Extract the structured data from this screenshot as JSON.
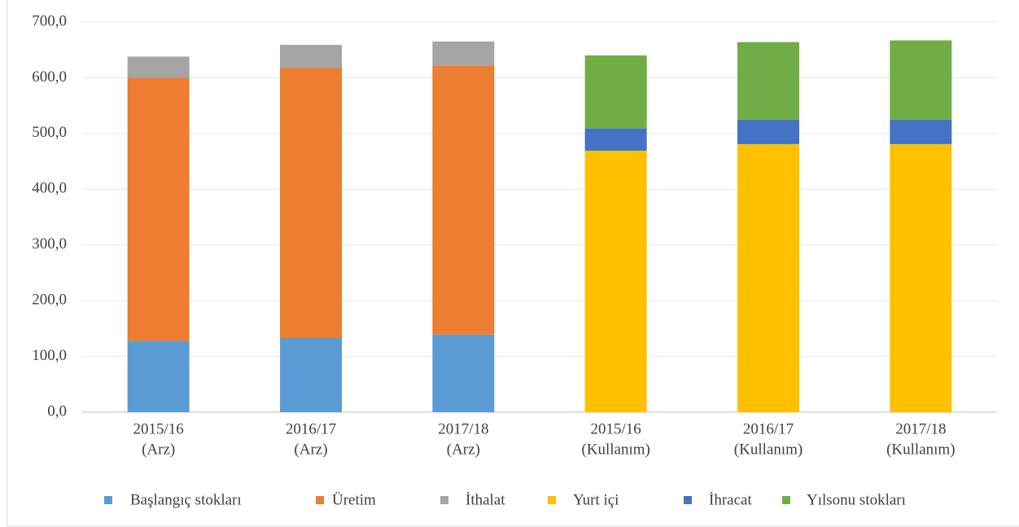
{
  "chart_data": {
    "type": "stacked_bar",
    "categories": [
      [
        "2015/16",
        "(Arz)"
      ],
      [
        "2016/17",
        "(Arz)"
      ],
      [
        "2017/18",
        "(Arz)"
      ],
      [
        "2015/16",
        "(Kullanım)"
      ],
      [
        "2016/17",
        "(Kullanım)"
      ],
      [
        "2017/18",
        "(Kullanım)"
      ]
    ],
    "series": [
      {
        "name": "Başlangıç stokları",
        "color": "#5b9bd5",
        "values": [
          128,
          133,
          139,
          null,
          null,
          null
        ]
      },
      {
        "name": "Üretim",
        "color": "#ed7d31",
        "values": [
          472,
          485,
          483,
          null,
          null,
          null
        ]
      },
      {
        "name": "İthalat",
        "color": "#a5a5a5",
        "values": [
          38,
          41,
          43,
          null,
          null,
          null
        ]
      },
      {
        "name": "Yurt içi",
        "color": "#ffc000",
        "values": [
          null,
          null,
          null,
          469,
          481,
          481
        ]
      },
      {
        "name": "İhracat",
        "color": "#4472c4",
        "values": [
          null,
          null,
          null,
          40,
          44,
          44
        ]
      },
      {
        "name": "Yılsonu stokları",
        "color": "#70ad47",
        "values": [
          null,
          null,
          null,
          131,
          139,
          142
        ]
      }
    ],
    "ylim": [
      0,
      700
    ],
    "yticks": [
      {
        "value": 0,
        "label": "0,0"
      },
      {
        "value": 100,
        "label": "100,0"
      },
      {
        "value": 200,
        "label": "200,0"
      },
      {
        "value": 300,
        "label": "300,0"
      },
      {
        "value": 400,
        "label": "400,0"
      },
      {
        "value": 500,
        "label": "500,0"
      },
      {
        "value": 600,
        "label": "600,0"
      },
      {
        "value": 700,
        "label": "700,0"
      }
    ],
    "grid": true,
    "legend": "bottom"
  }
}
